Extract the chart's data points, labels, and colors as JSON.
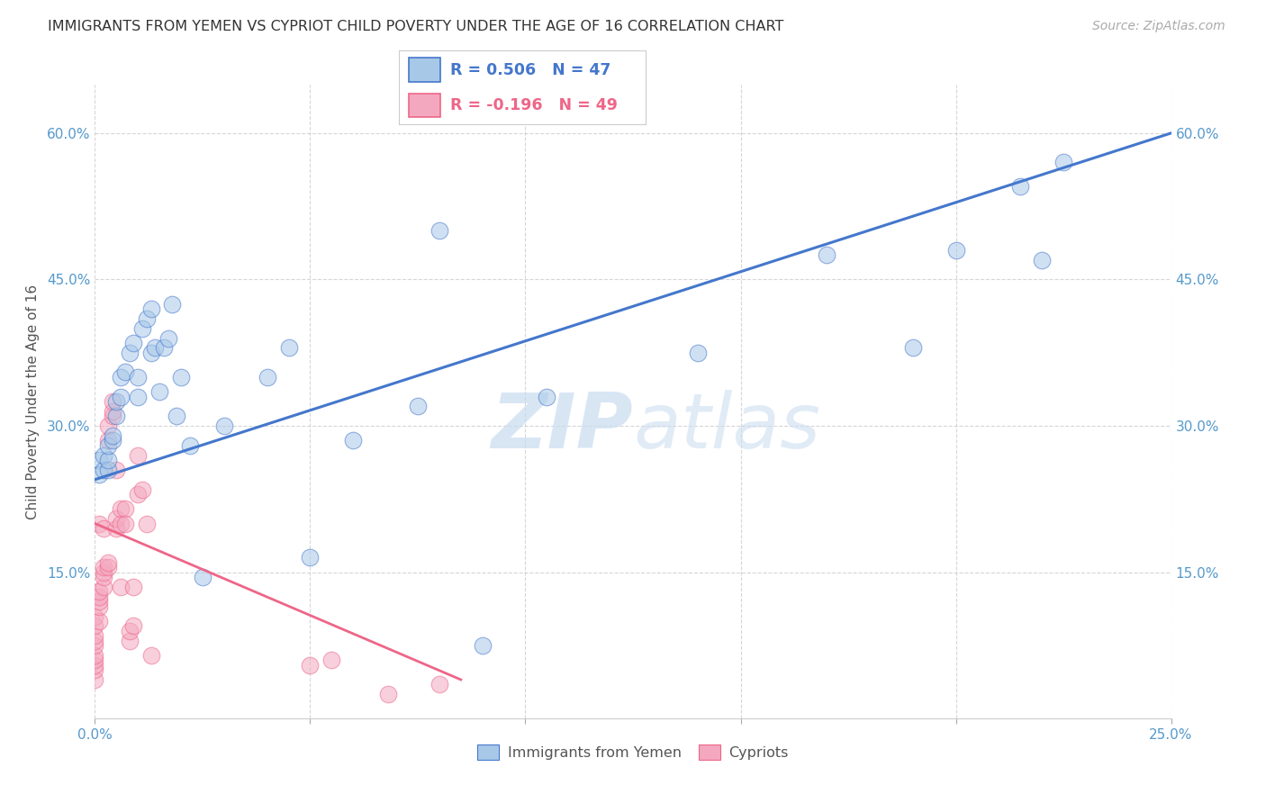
{
  "title": "IMMIGRANTS FROM YEMEN VS CYPRIOT CHILD POVERTY UNDER THE AGE OF 16 CORRELATION CHART",
  "source": "Source: ZipAtlas.com",
  "ylabel": "Child Poverty Under the Age of 16",
  "legend_labels": [
    "Immigrants from Yemen",
    "Cypriots"
  ],
  "blue_R": "R = 0.506",
  "blue_N": "N = 47",
  "pink_R": "R = -0.196",
  "pink_N": "N = 49",
  "watermark_zip": "ZIP",
  "watermark_atlas": "atlas",
  "blue_color": "#A8C8E8",
  "pink_color": "#F4A8C0",
  "blue_line_color": "#4477CC",
  "pink_line_color": "#EE6688",
  "xmin": 0.0,
  "xmax": 0.25,
  "ymin": 0.0,
  "ymax": 0.65,
  "xticks": [
    0.0,
    0.05,
    0.1,
    0.15,
    0.2,
    0.25
  ],
  "xtick_labels_show": [
    "0.0%",
    "",
    "",
    "",
    "",
    "25.0%"
  ],
  "yticks_left": [
    0.15,
    0.3,
    0.45,
    0.6
  ],
  "ytick_labels_left": [
    "15.0%",
    "30.0%",
    "45.0%",
    "60.0%"
  ],
  "yticks_right": [
    0.15,
    0.3,
    0.45,
    0.6
  ],
  "ytick_labels_right": [
    "15.0%",
    "30.0%",
    "45.0%",
    "60.0%"
  ],
  "blue_x": [
    0.001,
    0.001,
    0.002,
    0.002,
    0.003,
    0.003,
    0.003,
    0.004,
    0.004,
    0.005,
    0.005,
    0.006,
    0.006,
    0.007,
    0.008,
    0.009,
    0.01,
    0.01,
    0.011,
    0.012,
    0.013,
    0.013,
    0.014,
    0.015,
    0.016,
    0.017,
    0.018,
    0.019,
    0.02,
    0.022,
    0.025,
    0.03,
    0.04,
    0.045,
    0.05,
    0.06,
    0.075,
    0.08,
    0.09,
    0.105,
    0.14,
    0.17,
    0.19,
    0.2,
    0.215,
    0.22,
    0.225
  ],
  "blue_y": [
    0.265,
    0.25,
    0.255,
    0.27,
    0.255,
    0.265,
    0.28,
    0.285,
    0.29,
    0.31,
    0.325,
    0.35,
    0.33,
    0.355,
    0.375,
    0.385,
    0.33,
    0.35,
    0.4,
    0.41,
    0.42,
    0.375,
    0.38,
    0.335,
    0.38,
    0.39,
    0.425,
    0.31,
    0.35,
    0.28,
    0.145,
    0.3,
    0.35,
    0.38,
    0.165,
    0.285,
    0.32,
    0.5,
    0.075,
    0.33,
    0.375,
    0.475,
    0.38,
    0.48,
    0.545,
    0.47,
    0.57
  ],
  "pink_x": [
    0.0,
    0.0,
    0.0,
    0.0,
    0.0,
    0.0,
    0.0,
    0.0,
    0.0,
    0.0,
    0.001,
    0.001,
    0.001,
    0.001,
    0.001,
    0.001,
    0.002,
    0.002,
    0.002,
    0.002,
    0.002,
    0.003,
    0.003,
    0.003,
    0.003,
    0.004,
    0.004,
    0.004,
    0.005,
    0.005,
    0.005,
    0.006,
    0.006,
    0.006,
    0.007,
    0.007,
    0.008,
    0.008,
    0.009,
    0.009,
    0.01,
    0.01,
    0.011,
    0.012,
    0.013,
    0.05,
    0.055,
    0.068,
    0.08
  ],
  "pink_y": [
    0.04,
    0.05,
    0.055,
    0.06,
    0.065,
    0.075,
    0.08,
    0.085,
    0.095,
    0.105,
    0.1,
    0.115,
    0.12,
    0.125,
    0.13,
    0.2,
    0.135,
    0.145,
    0.15,
    0.155,
    0.195,
    0.155,
    0.16,
    0.285,
    0.3,
    0.31,
    0.315,
    0.325,
    0.255,
    0.195,
    0.205,
    0.135,
    0.2,
    0.215,
    0.215,
    0.2,
    0.08,
    0.09,
    0.095,
    0.135,
    0.23,
    0.27,
    0.235,
    0.2,
    0.065,
    0.055,
    0.06,
    0.025,
    0.035
  ],
  "blue_trend_x": [
    0.0,
    0.25
  ],
  "blue_trend_y": [
    0.245,
    0.6
  ],
  "pink_trend_x": [
    0.0,
    0.085
  ],
  "pink_trend_y": [
    0.2,
    0.04
  ],
  "title_fontsize": 11.5,
  "source_fontsize": 10,
  "axis_tick_fontsize": 11,
  "ylabel_fontsize": 11
}
